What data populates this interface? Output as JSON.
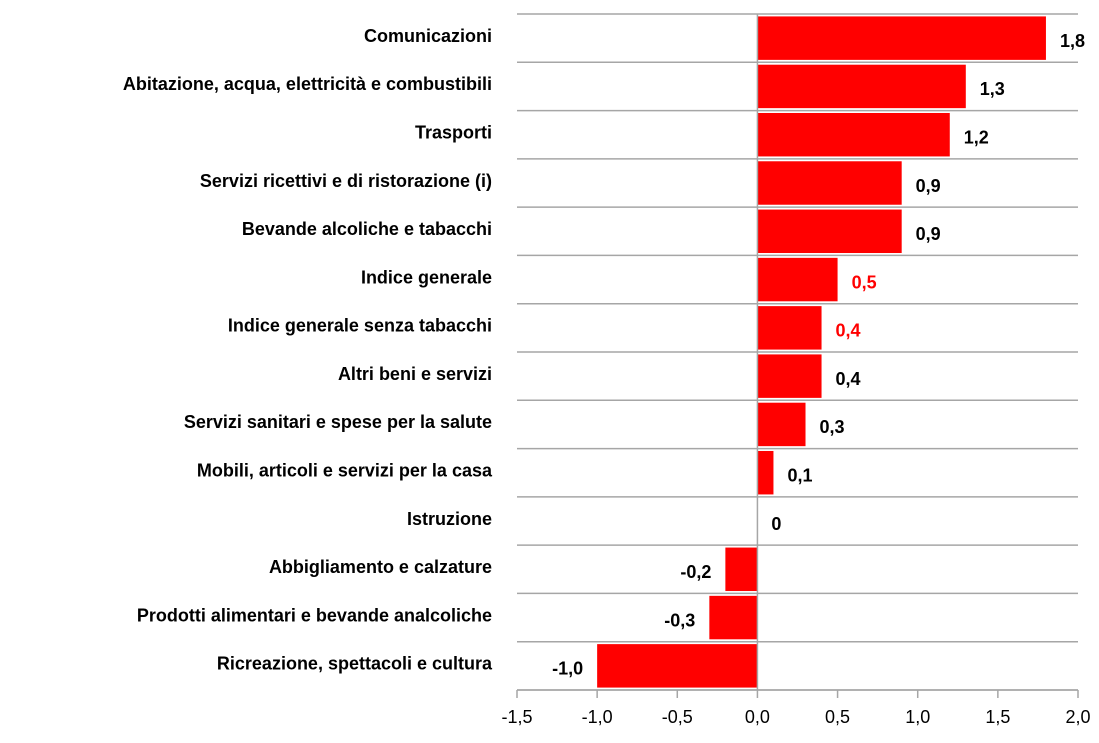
{
  "chart_data": {
    "type": "barh",
    "categories": [
      "Comunicazioni",
      "Abitazione, acqua, elettricità e combustibili",
      "Trasporti",
      "Servizi ricettivi e di ristorazione (i)",
      "Bevande alcoliche e tabacchi",
      "Indice generale",
      "Indice generale senza tabacchi",
      "Altri beni e servizi",
      "Servizi sanitari e spese per la salute",
      "Mobili, articoli e servizi per la casa",
      "Istruzione",
      "Abbigliamento e calzature",
      "Prodotti alimentari e bevande analcoliche",
      "Ricreazione, spettacoli e cultura"
    ],
    "values": [
      1.8,
      1.3,
      1.2,
      0.9,
      0.9,
      0.5,
      0.4,
      0.4,
      0.3,
      0.1,
      0,
      -0.2,
      -0.3,
      -1.0
    ],
    "value_labels": [
      "1,8",
      "1,3",
      "1,2",
      "0,9",
      "0,9",
      "0,5",
      "0,4",
      "0,4",
      "0,3",
      "0,1",
      "0",
      "-0,2",
      "-0,3",
      "-1,0"
    ],
    "value_label_colors": [
      "#000000",
      "#000000",
      "#000000",
      "#000000",
      "#000000",
      "#ff0000",
      "#ff0000",
      "#000000",
      "#000000",
      "#000000",
      "#000000",
      "#000000",
      "#000000",
      "#000000"
    ],
    "color": "#ff0000",
    "xlim": [
      -1.5,
      2.0
    ],
    "xticks": [
      {
        "value": -1.5,
        "label": "-1,5"
      },
      {
        "value": -1.0,
        "label": "-1,0"
      },
      {
        "value": -0.5,
        "label": "-0,5"
      },
      {
        "value": 0,
        "label": "0,0"
      },
      {
        "value": 0.5,
        "label": "0,5"
      },
      {
        "value": 1.0,
        "label": "1,0"
      },
      {
        "value": 1.5,
        "label": "1,5"
      },
      {
        "value": 2.0,
        "label": "2,0"
      }
    ]
  }
}
